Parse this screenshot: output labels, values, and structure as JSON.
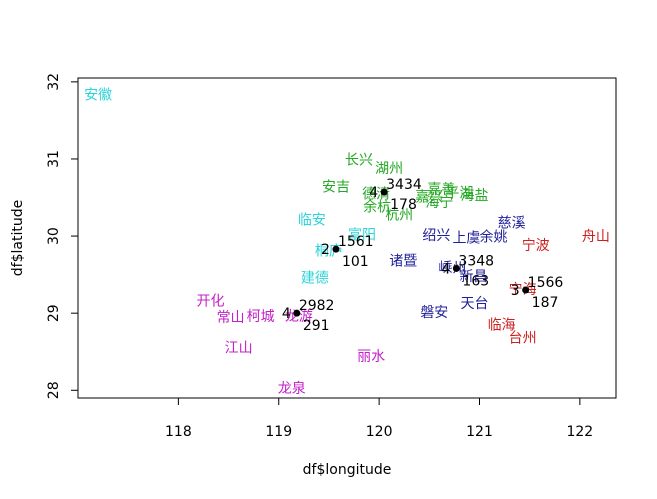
{
  "chart_data": {
    "type": "scatter",
    "title": "",
    "xlabel": "df$longitude",
    "ylabel": "df$latitude",
    "xlim": [
      117.0,
      122.36
    ],
    "ylim": [
      27.9,
      32.05
    ],
    "x_ticks": [
      118,
      119,
      120,
      121,
      122
    ],
    "y_ticks": [
      28,
      29,
      30,
      31,
      32
    ],
    "x_tick_labels": [
      "118",
      "119",
      "120",
      "121",
      "122"
    ],
    "y_tick_labels": [
      "28",
      "29",
      "30",
      "31",
      "32"
    ],
    "grid": false,
    "legend": "none",
    "colors": {
      "cluster_1": "#DF536B",
      "cluster_2": "#28E2E5",
      "cluster_3": "#CD0BBC",
      "cluster_4": "#61D04F",
      "cluster_5": "#2297E6",
      "red": "#CC2020",
      "cyan": "#2BD4DA",
      "magenta": "#C320C8",
      "green": "#22A822",
      "navy": "#1F1F9A"
    },
    "cities": [
      {
        "label": "安徽",
        "x": 117.2,
        "y": 31.82,
        "color": "cyan"
      },
      {
        "label": "长兴",
        "x": 119.8,
        "y": 30.98,
        "color": "green"
      },
      {
        "label": "湖州",
        "x": 120.1,
        "y": 30.87,
        "color": "green"
      },
      {
        "label": "安吉",
        "x": 119.57,
        "y": 30.63,
        "color": "green"
      },
      {
        "label": "德清",
        "x": 119.97,
        "y": 30.54,
        "color": "green"
      },
      {
        "label": "嘉善",
        "x": 120.62,
        "y": 30.6,
        "color": "green"
      },
      {
        "label": "嘉兴",
        "x": 120.5,
        "y": 30.5,
        "color": "green"
      },
      {
        "label": "平湖",
        "x": 120.8,
        "y": 30.55,
        "color": "green"
      },
      {
        "label": "海盐",
        "x": 120.95,
        "y": 30.52,
        "color": "green"
      },
      {
        "label": "海宁",
        "x": 120.6,
        "y": 30.43,
        "color": "green"
      },
      {
        "label": "余杭",
        "x": 119.98,
        "y": 30.37,
        "color": "green"
      },
      {
        "label": "杭州",
        "x": 120.2,
        "y": 30.27,
        "color": "green"
      },
      {
        "label": "临安",
        "x": 119.33,
        "y": 30.2,
        "color": "cyan"
      },
      {
        "label": "富阳",
        "x": 119.83,
        "y": 30.01,
        "color": "cyan"
      },
      {
        "label": "桐庐",
        "x": 119.5,
        "y": 29.8,
        "color": "cyan"
      },
      {
        "label": "建德",
        "x": 119.36,
        "y": 29.45,
        "color": "cyan"
      },
      {
        "label": "绍兴",
        "x": 120.57,
        "y": 30.0,
        "color": "navy"
      },
      {
        "label": "上虞",
        "x": 120.87,
        "y": 29.97,
        "color": "navy"
      },
      {
        "label": "余姚",
        "x": 121.14,
        "y": 29.98,
        "color": "navy"
      },
      {
        "label": "慈溪",
        "x": 121.32,
        "y": 30.16,
        "color": "navy"
      },
      {
        "label": "诸暨",
        "x": 120.24,
        "y": 29.67,
        "color": "navy"
      },
      {
        "label": "嵊州",
        "x": 120.73,
        "y": 29.58,
        "color": "navy"
      },
      {
        "label": "新昌",
        "x": 120.94,
        "y": 29.47,
        "color": "navy"
      },
      {
        "label": "天台",
        "x": 120.95,
        "y": 29.12,
        "color": "navy"
      },
      {
        "label": "磐安",
        "x": 120.55,
        "y": 29.0,
        "color": "navy"
      },
      {
        "label": "宁波",
        "x": 121.56,
        "y": 29.87,
        "color": "red"
      },
      {
        "label": "舟山",
        "x": 122.16,
        "y": 29.99,
        "color": "red"
      },
      {
        "label": "宁海",
        "x": 121.43,
        "y": 29.3,
        "color": "red"
      },
      {
        "label": "临海",
        "x": 121.22,
        "y": 28.84,
        "color": "red"
      },
      {
        "label": "台州",
        "x": 121.43,
        "y": 28.67,
        "color": "red"
      },
      {
        "label": "开化",
        "x": 118.32,
        "y": 29.15,
        "color": "magenta"
      },
      {
        "label": "常山",
        "x": 118.52,
        "y": 28.94,
        "color": "magenta"
      },
      {
        "label": "柯城",
        "x": 118.82,
        "y": 28.95,
        "color": "magenta"
      },
      {
        "label": "龙游",
        "x": 119.2,
        "y": 28.95,
        "color": "magenta"
      },
      {
        "label": "江山",
        "x": 118.6,
        "y": 28.54,
        "color": "magenta"
      },
      {
        "label": "丽水",
        "x": 119.92,
        "y": 28.43,
        "color": "magenta"
      },
      {
        "label": "龙泉",
        "x": 119.13,
        "y": 28.0,
        "color": "magenta"
      }
    ],
    "centers": [
      {
        "x": 120.05,
        "y": 30.57,
        "cluster": "4",
        "top": "3434",
        "bottom": "178"
      },
      {
        "x": 119.57,
        "y": 29.83,
        "cluster": "2",
        "top": "1561",
        "bottom": "101"
      },
      {
        "x": 120.77,
        "y": 29.58,
        "cluster": "4",
        "top": "3348",
        "bottom": "163"
      },
      {
        "x": 121.46,
        "y": 29.3,
        "cluster": "3",
        "top": "1566",
        "bottom": "187"
      },
      {
        "x": 119.18,
        "y": 29.0,
        "cluster": "4",
        "top": "2982",
        "bottom": "291"
      }
    ]
  }
}
